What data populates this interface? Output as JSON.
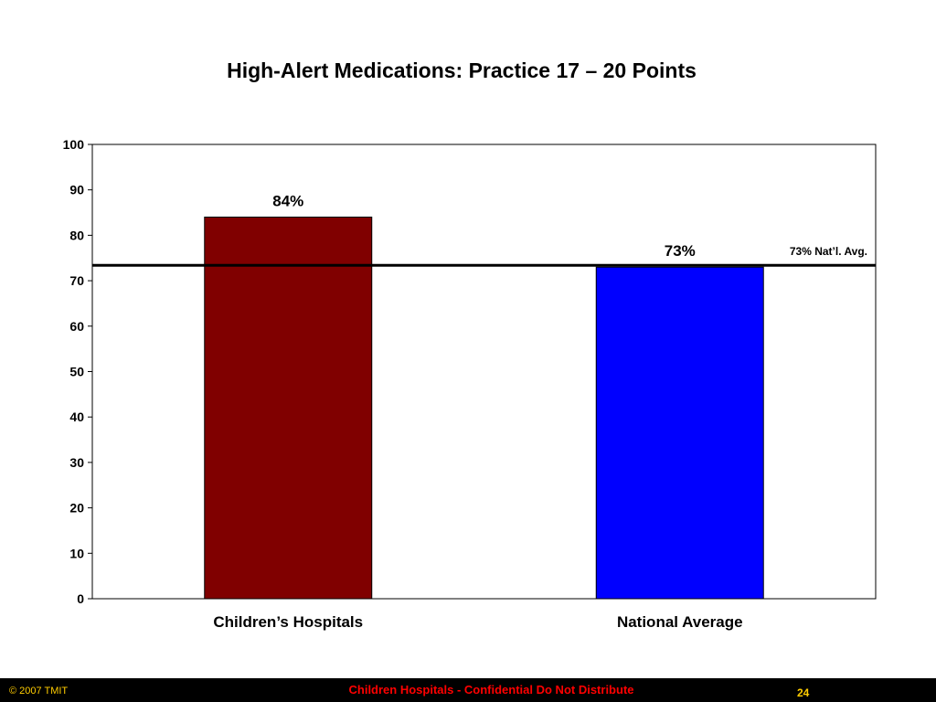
{
  "slide": {
    "title": "High-Alert Medications: Practice 17 – 20 Points"
  },
  "chart_data": {
    "type": "bar",
    "categories": [
      "Children’s Hospitals",
      "National Average"
    ],
    "values": [
      84,
      73
    ],
    "data_labels": [
      "84%",
      "73%"
    ],
    "bar_colors": [
      "#800000",
      "#0000ff"
    ],
    "ylim": [
      0,
      100
    ],
    "yticks": [
      0,
      10,
      20,
      30,
      40,
      50,
      60,
      70,
      80,
      90,
      100
    ],
    "grid": false,
    "reference_line": {
      "value": 73,
      "label": "73% Nat’l. Avg.",
      "color": "#000000"
    }
  },
  "footer": {
    "copyright": "© 2007 TMIT",
    "notice": "Children Hospitals - Confidential Do Not Distribute",
    "page_number": "24",
    "background": "#000000",
    "notice_color": "#ff0000",
    "accent_color": "#ffcc00"
  }
}
